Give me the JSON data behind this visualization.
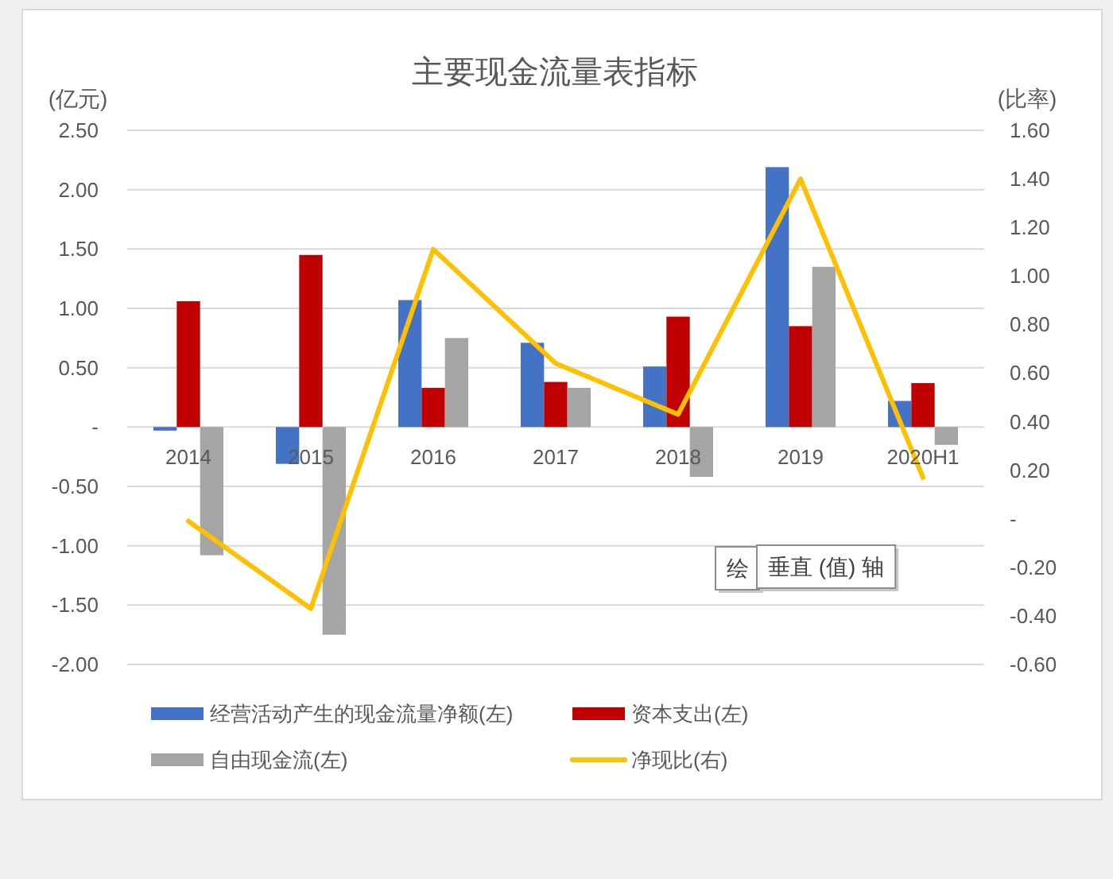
{
  "chart_data": {
    "type": "bar",
    "title": "主要现金流量表指标",
    "ylabel": "(亿元)",
    "y2label": "(比率)",
    "categories": [
      "2014",
      "2015",
      "2016",
      "2017",
      "2018",
      "2019",
      "2020H1"
    ],
    "series": [
      {
        "name": "经营活动产生的现金流量净额(左)",
        "color": "#4472c4",
        "values": [
          -0.03,
          -0.31,
          1.07,
          0.71,
          0.51,
          2.19,
          0.22
        ]
      },
      {
        "name": "资本支出(左)",
        "color": "#c00000",
        "values": [
          1.06,
          1.45,
          0.33,
          0.38,
          0.93,
          0.85,
          0.37
        ]
      },
      {
        "name": "自由现金流(左)",
        "color": "#a5a5a5",
        "values": [
          -1.08,
          -1.75,
          0.75,
          0.33,
          -0.42,
          1.35,
          -0.15
        ]
      },
      {
        "name": "净现比(右)",
        "type": "line",
        "axis": "y2",
        "color": "#ffc000",
        "values": [
          -0.01,
          -0.37,
          1.11,
          0.64,
          0.43,
          1.4,
          0.17
        ]
      }
    ],
    "ylim": [
      -2.0,
      2.5
    ],
    "yticks": [
      {
        "value": 2.5,
        "label": "2.50"
      },
      {
        "value": 2.0,
        "label": "2.00"
      },
      {
        "value": 1.5,
        "label": "1.50"
      },
      {
        "value": 1.0,
        "label": "1.00"
      },
      {
        "value": 0.5,
        "label": "0.50"
      },
      {
        "value": 0,
        "label": "-"
      },
      {
        "value": -0.5,
        "label": "-0.50"
      },
      {
        "value": -1.0,
        "label": "-1.00"
      },
      {
        "value": -1.5,
        "label": "-1.50"
      },
      {
        "value": -2.0,
        "label": "-2.00"
      }
    ],
    "y2lim": [
      -0.6,
      1.6
    ],
    "y2ticks": [
      {
        "value": 1.6,
        "label": "1.60"
      },
      {
        "value": 1.4,
        "label": "1.40"
      },
      {
        "value": 1.2,
        "label": "1.20"
      },
      {
        "value": 1.0,
        "label": "1.00"
      },
      {
        "value": 0.8,
        "label": "0.80"
      },
      {
        "value": 0.6,
        "label": "0.60"
      },
      {
        "value": 0.4,
        "label": "0.40"
      },
      {
        "value": 0.2,
        "label": "0.20"
      },
      {
        "value": 0,
        "label": "-"
      },
      {
        "value": -0.2,
        "label": "-0.20"
      },
      {
        "value": -0.4,
        "label": "-0.40"
      },
      {
        "value": -0.6,
        "label": "-0.60"
      }
    ],
    "grid": "y",
    "legend": "bottom",
    "line_style": "solid",
    "annotations": [
      "绘",
      "垂直 (值) 轴"
    ]
  }
}
